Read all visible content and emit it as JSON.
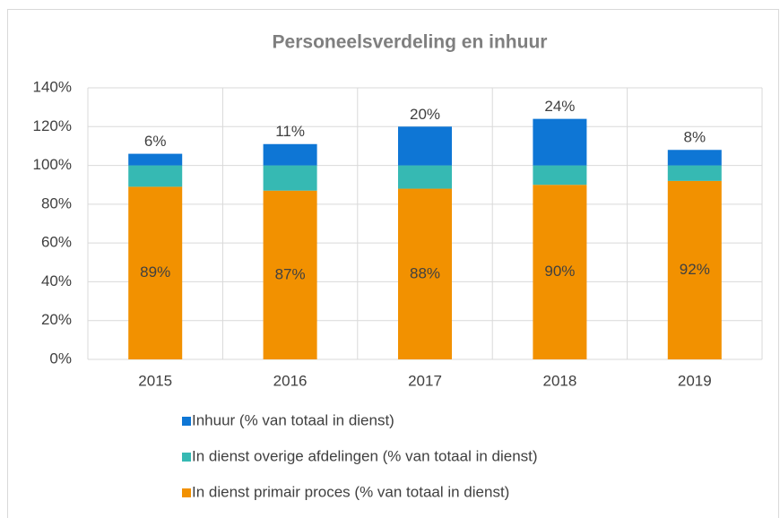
{
  "chart_data": {
    "type": "stacked_bar",
    "title": "Personeelsverdeling en inhuur",
    "categories": [
      "2015",
      "2016",
      "2017",
      "2018",
      "2019"
    ],
    "series": [
      {
        "name": "In dienst primair proces (% van totaal in dienst)",
        "color": "#f29100",
        "values": [
          89,
          87,
          88,
          90,
          92
        ],
        "value_labels": [
          "89%",
          "87%",
          "88%",
          "90%",
          "92%"
        ]
      },
      {
        "name": "In dienst overige afdelingen (% van totaal in dienst)",
        "color": "#36b9b3",
        "values": [
          11,
          13,
          12,
          10,
          8
        ]
      },
      {
        "name": "Inhuur (% van totaal in dienst)",
        "color": "#0e76d5",
        "values": [
          6,
          11,
          20,
          24,
          8
        ],
        "value_labels": [
          "6%",
          "11%",
          "20%",
          "24%",
          "8%"
        ]
      }
    ],
    "ylim": [
      0,
      140
    ],
    "yticks": [
      {
        "value": 0,
        "label": "0%"
      },
      {
        "value": 20,
        "label": "20%"
      },
      {
        "value": 40,
        "label": "40%"
      },
      {
        "value": 60,
        "label": "60%"
      },
      {
        "value": 80,
        "label": "80%"
      },
      {
        "value": 100,
        "label": "100%"
      },
      {
        "value": 120,
        "label": "120%"
      },
      {
        "value": 140,
        "label": "140%"
      }
    ],
    "grid": true
  }
}
